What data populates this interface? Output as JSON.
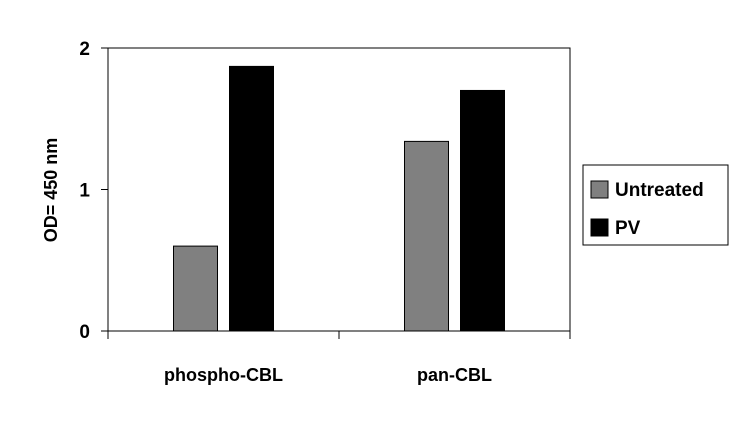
{
  "chart_data": {
    "type": "bar",
    "categories": [
      "phospho-CBL",
      "pan-CBL"
    ],
    "series": [
      {
        "name": "Untreated",
        "color": "#808080",
        "values": [
          0.6,
          1.34
        ]
      },
      {
        "name": "PV",
        "color": "#000000",
        "values": [
          1.87,
          1.7
        ]
      }
    ],
    "ylabel": "OD= 450 nm",
    "ylim": [
      0,
      2
    ],
    "yticks": [
      0,
      1,
      2
    ],
    "grid": false,
    "legend_position": "right"
  }
}
